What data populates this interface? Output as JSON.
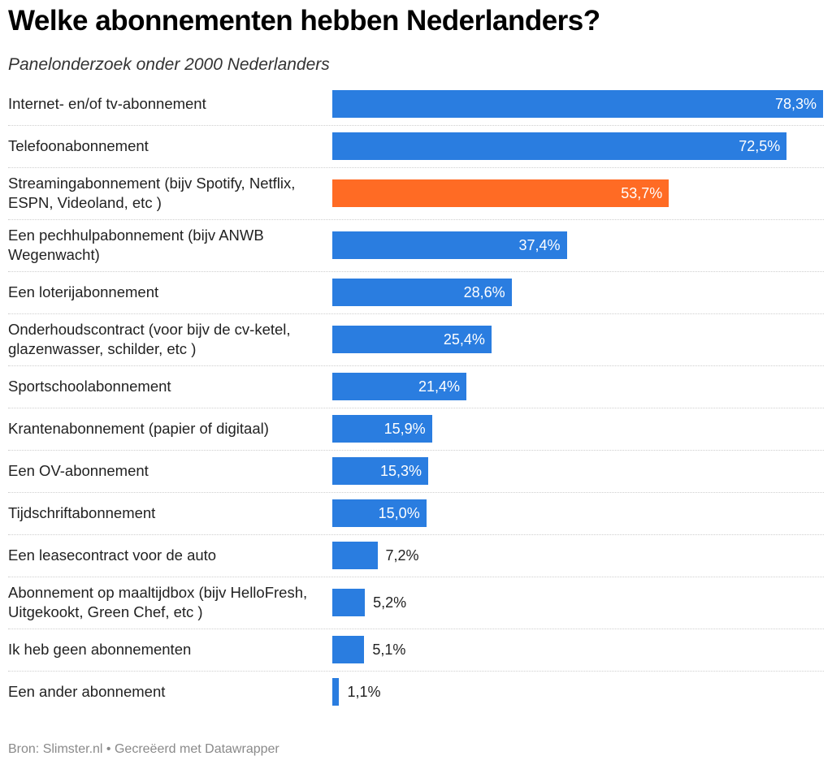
{
  "header": {
    "title": "Welke abonnementen hebben Nederlanders?",
    "subtitle": "Panelonderzoek onder 2000 Nederlanders"
  },
  "footer": {
    "text": "Bron: Slimster.nl • Gecreëerd met Datawrapper"
  },
  "colors": {
    "bar": "#2a7de0",
    "highlight": "#ff6b24"
  },
  "chart_data": {
    "type": "bar",
    "orientation": "horizontal",
    "title": "Welke abonnementen hebben Nederlanders?",
    "subtitle": "Panelonderzoek onder 2000 Nederlanders",
    "xlim": [
      0,
      78.3
    ],
    "unit": "%",
    "highlight_index": 2,
    "categories": [
      "Internet- en/of tv-abonnement",
      "Telefoonabonnement",
      "Streamingabonnement (bijv Spotify, Netflix, ESPN, Videoland, etc )",
      "Een pechhulpabonnement (bijv ANWB Wegenwacht)",
      "Een loterijabonnement",
      "Onderhoudscontract (voor bijv de cv-ketel, glazenwasser, schilder, etc )",
      "Sportschoolabonnement",
      "Krantenabonnement (papier of digitaal)",
      "Een OV-abonnement",
      "Tijdschriftabonnement",
      "Een leasecontract voor de auto",
      "Abonnement op maaltijdbox (bijv HelloFresh, Uitgekookt, Green Chef, etc )",
      "Ik heb geen abonnementen",
      "Een ander abonnement"
    ],
    "values": [
      78.3,
      72.5,
      53.7,
      37.4,
      28.6,
      25.4,
      21.4,
      15.9,
      15.3,
      15.0,
      7.2,
      5.2,
      5.1,
      1.1
    ],
    "value_labels": [
      "78,3%",
      "72,5%",
      "53,7%",
      "37,4%",
      "28,6%",
      "25,4%",
      "21,4%",
      "15,9%",
      "15,3%",
      "15,0%",
      "7,2%",
      "5,2%",
      "5,1%",
      "1,1%"
    ]
  }
}
